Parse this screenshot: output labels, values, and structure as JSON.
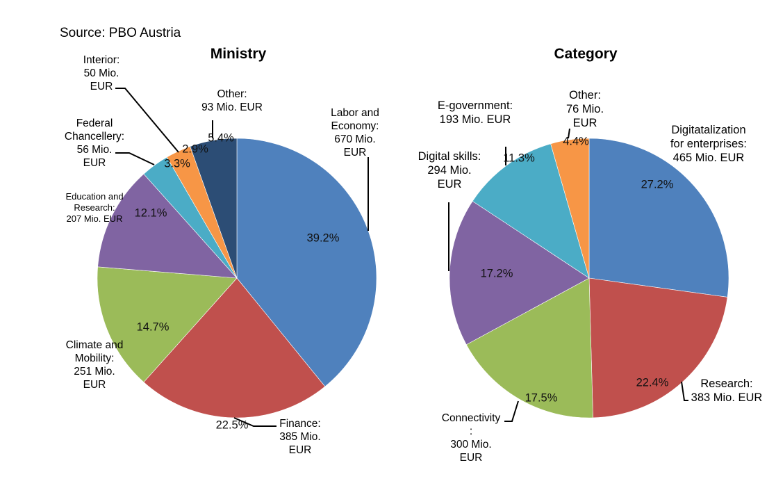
{
  "source": "Source: PBO Austria",
  "chart_data": [
    {
      "type": "pie",
      "title": "Ministry",
      "start": "12 o'clock, clockwise",
      "slices": [
        {
          "name": "Labor and Economy",
          "label": "Labor and\nEconomy:\n670 Mio.\nEUR",
          "value": 670,
          "percent": 39.2,
          "pct_label": "39.2%",
          "color": "#4F81BD"
        },
        {
          "name": "Finance",
          "label": "Finance:\n385 Mio.\nEUR",
          "value": 385,
          "percent": 22.5,
          "pct_label": "22.5%",
          "color": "#C0504D"
        },
        {
          "name": "Climate and Mobility",
          "label": "Climate and\nMobility:\n251 Mio.\nEUR",
          "value": 251,
          "percent": 14.7,
          "pct_label": "14.7%",
          "color": "#9BBB59"
        },
        {
          "name": "Education and Research",
          "label": "Education and\nResearch:\n207 Mio. EUR",
          "value": 207,
          "percent": 12.1,
          "pct_label": "12.1%",
          "color": "#8064A2"
        },
        {
          "name": "Federal Chancellery",
          "label": "Federal\nChancellery:\n56 Mio.\nEUR",
          "value": 56,
          "percent": 3.3,
          "pct_label": "3.3%",
          "color": "#4BACC6"
        },
        {
          "name": "Interior",
          "label": "Interior:\n50 Mio.\nEUR",
          "value": 50,
          "percent": 2.9,
          "pct_label": "2.9%",
          "color": "#F79646"
        },
        {
          "name": "Other",
          "label": "Other:\n93 Mio. EUR",
          "value": 93,
          "percent": 5.4,
          "pct_label": "5.4%",
          "color": "#2C4D75"
        }
      ]
    },
    {
      "type": "pie",
      "title": "Category",
      "start": "12 o'clock, clockwise",
      "slices": [
        {
          "name": "Digitatalization for enterprises",
          "label": "Digitatalization\nfor enterprises:\n465 Mio. EUR",
          "value": 465,
          "percent": 27.2,
          "pct_label": "27.2%",
          "color": "#4F81BD"
        },
        {
          "name": "Research",
          "label": "Research:\n383 Mio. EUR",
          "value": 383,
          "percent": 22.4,
          "pct_label": "22.4%",
          "color": "#C0504D"
        },
        {
          "name": "Connectivity",
          "label": "Connectivity\n:\n300 Mio.\nEUR",
          "value": 300,
          "percent": 17.5,
          "pct_label": "17.5%",
          "color": "#9BBB59"
        },
        {
          "name": "Digital skills",
          "label": "Digital skills:\n294 Mio.\nEUR",
          "value": 294,
          "percent": 17.2,
          "pct_label": "17.2%",
          "color": "#8064A2"
        },
        {
          "name": "E-government",
          "label": "E-government:\n193 Mio. EUR",
          "value": 193,
          "percent": 11.3,
          "pct_label": "11.3%",
          "color": "#4BACC6"
        },
        {
          "name": "Other",
          "label": "Other:\n76 Mio.\nEUR",
          "value": 76,
          "percent": 4.4,
          "pct_label": "4.4%",
          "color": "#F79646"
        }
      ]
    }
  ]
}
